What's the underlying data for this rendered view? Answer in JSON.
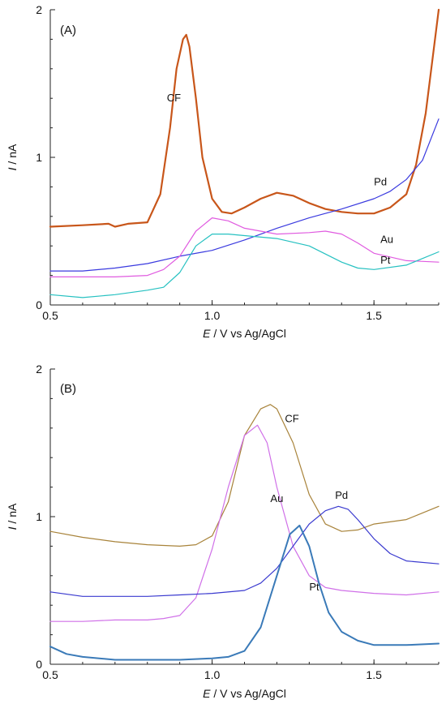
{
  "chart_data": [
    {
      "type": "line",
      "panel_label": "(A)",
      "xlabel_italic": "E",
      "xlabel_rest": " / V vs Ag/AgCl",
      "ylabel_italic": "I",
      "ylabel_rest": " / nA",
      "xlim": [
        0.5,
        1.7
      ],
      "ylim": [
        0,
        2
      ],
      "xticks": [
        {
          "v": 0.5,
          "label": "0.5"
        },
        {
          "v": 1.0,
          "label": "1.0"
        },
        {
          "v": 1.5,
          "label": "1.5"
        }
      ],
      "yticks": [
        {
          "v": 0,
          "label": "0"
        },
        {
          "v": 1,
          "label": "1"
        },
        {
          "v": 2,
          "label": "2"
        }
      ],
      "series": [
        {
          "name": "CF",
          "color": "#c8561a",
          "width": 2.2,
          "x": [
            0.5,
            0.6,
            0.68,
            0.7,
            0.74,
            0.8,
            0.84,
            0.87,
            0.89,
            0.91,
            0.92,
            0.93,
            0.95,
            0.97,
            1.0,
            1.03,
            1.06,
            1.1,
            1.15,
            1.2,
            1.25,
            1.3,
            1.35,
            1.4,
            1.45,
            1.5,
            1.55,
            1.6,
            1.63,
            1.66,
            1.68,
            1.7
          ],
          "y": [
            0.53,
            0.54,
            0.55,
            0.53,
            0.55,
            0.56,
            0.75,
            1.2,
            1.6,
            1.8,
            1.83,
            1.75,
            1.4,
            1.0,
            0.72,
            0.63,
            0.62,
            0.66,
            0.72,
            0.76,
            0.74,
            0.69,
            0.65,
            0.63,
            0.62,
            0.62,
            0.66,
            0.75,
            0.95,
            1.3,
            1.65,
            2.0
          ]
        },
        {
          "name": "Pd",
          "color": "#3a3adf",
          "width": 1.2,
          "x": [
            0.5,
            0.6,
            0.7,
            0.8,
            0.9,
            1.0,
            1.1,
            1.2,
            1.3,
            1.4,
            1.5,
            1.55,
            1.6,
            1.65,
            1.7
          ],
          "y": [
            0.23,
            0.23,
            0.25,
            0.28,
            0.33,
            0.37,
            0.44,
            0.52,
            0.59,
            0.65,
            0.72,
            0.77,
            0.85,
            0.98,
            1.26
          ]
        },
        {
          "name": "Au",
          "color": "#e05be0",
          "width": 1.2,
          "x": [
            0.5,
            0.6,
            0.7,
            0.8,
            0.85,
            0.9,
            0.95,
            1.0,
            1.05,
            1.1,
            1.2,
            1.3,
            1.35,
            1.4,
            1.45,
            1.5,
            1.6,
            1.7
          ],
          "y": [
            0.19,
            0.19,
            0.19,
            0.2,
            0.24,
            0.33,
            0.5,
            0.59,
            0.57,
            0.52,
            0.48,
            0.49,
            0.5,
            0.48,
            0.42,
            0.35,
            0.3,
            0.29
          ]
        },
        {
          "name": "Pt",
          "color": "#26c1c1",
          "width": 1.2,
          "x": [
            0.5,
            0.6,
            0.7,
            0.8,
            0.85,
            0.9,
            0.95,
            1.0,
            1.05,
            1.1,
            1.2,
            1.3,
            1.4,
            1.45,
            1.5,
            1.6,
            1.7
          ],
          "y": [
            0.07,
            0.05,
            0.07,
            0.1,
            0.12,
            0.22,
            0.4,
            0.48,
            0.48,
            0.47,
            0.45,
            0.4,
            0.29,
            0.25,
            0.24,
            0.27,
            0.36
          ]
        }
      ],
      "labels": [
        {
          "text": "CF",
          "x": 0.86,
          "y": 1.38
        },
        {
          "text": "Pd",
          "x": 1.5,
          "y": 0.81
        },
        {
          "text": "Au",
          "x": 1.52,
          "y": 0.42
        },
        {
          "text": "Pt",
          "x": 1.52,
          "y": 0.28
        }
      ]
    },
    {
      "type": "line",
      "panel_label": "(B)",
      "xlabel_italic": "E",
      "xlabel_rest": " / V vs Ag/AgCl",
      "ylabel_italic": "I",
      "ylabel_rest": " / nA",
      "xlim": [
        0.5,
        1.7
      ],
      "ylim": [
        0,
        2
      ],
      "xticks": [
        {
          "v": 0.5,
          "label": "0.5"
        },
        {
          "v": 1.0,
          "label": "1.0"
        },
        {
          "v": 1.5,
          "label": "1.5"
        }
      ],
      "yticks": [
        {
          "v": 0,
          "label": "0"
        },
        {
          "v": 1,
          "label": "1"
        },
        {
          "v": 2,
          "label": "2"
        }
      ],
      "series": [
        {
          "name": "CF",
          "color": "#a8833a",
          "width": 1.2,
          "x": [
            0.5,
            0.6,
            0.7,
            0.8,
            0.9,
            0.95,
            1.0,
            1.05,
            1.1,
            1.15,
            1.18,
            1.2,
            1.25,
            1.3,
            1.35,
            1.4,
            1.45,
            1.5,
            1.6,
            1.7
          ],
          "y": [
            0.9,
            0.86,
            0.83,
            0.81,
            0.8,
            0.81,
            0.87,
            1.1,
            1.55,
            1.73,
            1.76,
            1.73,
            1.5,
            1.15,
            0.95,
            0.9,
            0.91,
            0.95,
            0.98,
            1.07
          ]
        },
        {
          "name": "Au",
          "color": "#d070e8",
          "width": 1.2,
          "x": [
            0.5,
            0.6,
            0.7,
            0.8,
            0.85,
            0.9,
            0.95,
            1.0,
            1.05,
            1.1,
            1.14,
            1.17,
            1.2,
            1.25,
            1.3,
            1.35,
            1.4,
            1.5,
            1.6,
            1.7
          ],
          "y": [
            0.29,
            0.29,
            0.3,
            0.3,
            0.31,
            0.33,
            0.45,
            0.78,
            1.2,
            1.55,
            1.62,
            1.5,
            1.2,
            0.8,
            0.6,
            0.52,
            0.5,
            0.48,
            0.47,
            0.49
          ]
        },
        {
          "name": "Pd",
          "color": "#3a3acf",
          "width": 1.2,
          "x": [
            0.5,
            0.6,
            0.7,
            0.8,
            0.9,
            1.0,
            1.1,
            1.15,
            1.2,
            1.25,
            1.3,
            1.35,
            1.39,
            1.42,
            1.45,
            1.5,
            1.55,
            1.6,
            1.7
          ],
          "y": [
            0.49,
            0.46,
            0.46,
            0.46,
            0.47,
            0.48,
            0.5,
            0.55,
            0.65,
            0.8,
            0.95,
            1.04,
            1.07,
            1.05,
            0.98,
            0.85,
            0.75,
            0.7,
            0.68
          ]
        },
        {
          "name": "Pt",
          "color": "#3a7ab8",
          "width": 2.0,
          "x": [
            0.5,
            0.55,
            0.6,
            0.7,
            0.8,
            0.9,
            1.0,
            1.05,
            1.1,
            1.15,
            1.2,
            1.24,
            1.27,
            1.3,
            1.33,
            1.36,
            1.4,
            1.45,
            1.5,
            1.6,
            1.7
          ],
          "y": [
            0.12,
            0.07,
            0.05,
            0.03,
            0.03,
            0.03,
            0.04,
            0.05,
            0.09,
            0.25,
            0.6,
            0.88,
            0.94,
            0.8,
            0.55,
            0.35,
            0.22,
            0.16,
            0.13,
            0.13,
            0.14
          ]
        }
      ],
      "labels": [
        {
          "text": "CF",
          "x": 1.225,
          "y": 1.64
        },
        {
          "text": "Au",
          "x": 1.18,
          "y": 1.1
        },
        {
          "text": "Pd",
          "x": 1.38,
          "y": 1.12
        },
        {
          "text": "Pt",
          "x": 1.3,
          "y": 0.5
        }
      ]
    }
  ]
}
